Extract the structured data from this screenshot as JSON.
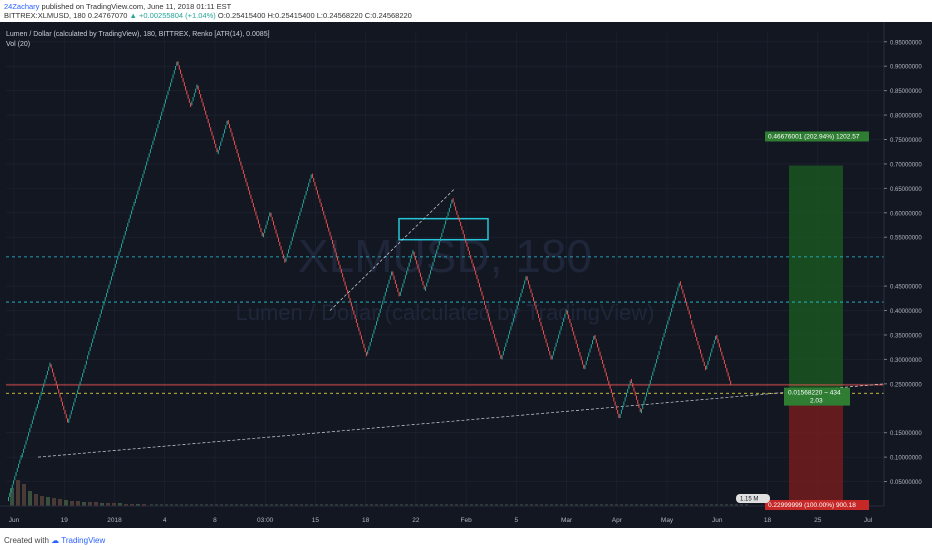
{
  "header": {
    "author": "24Zachary",
    "published_text": "published on TradingView.com, June 11, 2018 01:11 EST",
    "symbol": "BITTREX:XLMUSD, 180",
    "last": "0.24767070",
    "arrow": "▲",
    "change": "+0.00255804 (+1.04%)",
    "open": "O:0.25415400",
    "high": "H:0.25415400",
    "low": "L:0.24568220",
    "close": "C:0.24568220"
  },
  "legend": {
    "title": "Lumen / Dollar (calculated by TradingView), 180, BITTREX, Renko [ATR(14), 0.0085]",
    "vol": "Vol (20)"
  },
  "watermark": {
    "symbol": "XLMUSD, 180",
    "name": "Lumen / Dollar (calculated by TradingView)"
  },
  "footer": {
    "created_with": "Created with",
    "brand": "TradingView"
  },
  "colors": {
    "background": "#131722",
    "up": "#26a69a",
    "down": "#ef5350",
    "grid": "#1f2433",
    "level": "#26c6da",
    "profit": "#1b5e20",
    "loss": "#7f1d1d",
    "yellow": "#ffeb3b"
  },
  "chart_data": {
    "type": "line",
    "chart_style": "renko",
    "ylim": [
      0.0,
      0.97
    ],
    "y_ticks": [
      "0.95000000",
      "0.90000000",
      "0.85000000",
      "0.80000000",
      "0.75000000",
      "0.70000000",
      "0.65000000",
      "0.60000000",
      "0.55000000",
      "0.45000000",
      "0.40000000",
      "0.35000000",
      "0.30000000",
      "0.25000000",
      "0.15000000",
      "0.10000000",
      "0.05000000"
    ],
    "x_ticks": [
      "Jun",
      "19",
      "2018",
      "4",
      "8",
      "03:00",
      "15",
      "18",
      "22",
      "Feb",
      "5",
      "Mar",
      "Apr",
      "May",
      "Jun",
      "18",
      "25",
      "Jul"
    ],
    "price_path": [
      0.01,
      0.1,
      0.2,
      0.29,
      0.17,
      0.3,
      0.52,
      0.62,
      0.91,
      0.82,
      0.86,
      0.72,
      0.79,
      0.55,
      0.6,
      0.5,
      0.68,
      0.57,
      0.31,
      0.48,
      0.43,
      0.52,
      0.44,
      0.63,
      0.59,
      0.49,
      0.42,
      0.3,
      0.47,
      0.3,
      0.4,
      0.28,
      0.35,
      0.18,
      0.26,
      0.19,
      0.32,
      0.46,
      0.38,
      0.28,
      0.35,
      0.25
    ],
    "series": [
      {
        "values": [
          0.01,
          0.1,
          0.2,
          0.29,
          0.17,
          0.3,
          0.52,
          0.62,
          0.91,
          0.82,
          0.86,
          0.72,
          0.79,
          0.55,
          0.6,
          0.5,
          0.68,
          0.57,
          0.31,
          0.48,
          0.43,
          0.52,
          0.44,
          0.63,
          0.59,
          0.49,
          0.42,
          0.3,
          0.47,
          0.3,
          0.4,
          0.28,
          0.35,
          0.18,
          0.26,
          0.19,
          0.32,
          0.46,
          0.38,
          0.28,
          0.35,
          0.25
        ]
      }
    ],
    "levels": [
      {
        "label": "0.50980417",
        "value": 0.5098,
        "color": "#26c6da",
        "style": "dashed"
      },
      {
        "label": "0.41726097",
        "value": 0.4173,
        "color": "#26c6da",
        "style": "dashed"
      },
      {
        "label": "0.24767070",
        "value": 0.2477,
        "color": "#ef5350",
        "style": "solid"
      },
      {
        "label": "0.24568220",
        "value": 0.2457,
        "color": "#ef5350",
        "style": "none"
      },
      {
        "label": "0.23074671",
        "value": 0.2307,
        "color": "#ffeb3b",
        "style": "dashed"
      },
      {
        "label": "0.23000000",
        "value": 0.23,
        "color": "#131722",
        "style": "none"
      },
      {
        "label": "0.69676001",
        "value": 0.6968,
        "color": "#4caf50",
        "style": "none"
      },
      {
        "label": "0.00000001",
        "value": 0.0,
        "color": "#d50000",
        "style": "none"
      }
    ],
    "resistance_box": {
      "from": 0.545,
      "to": 0.588
    },
    "position": {
      "entry": 0.23,
      "target": 0.6968,
      "stop": 0.0,
      "profit_label": "0.46676001 (202.94%) 1202.57",
      "entry_label_1": "0.01568220 ~ 434",
      "entry_label_2": "2.03",
      "loss_label": "0.22999999 (100.00%) 900.18"
    },
    "volume_label": "1.15 M"
  }
}
